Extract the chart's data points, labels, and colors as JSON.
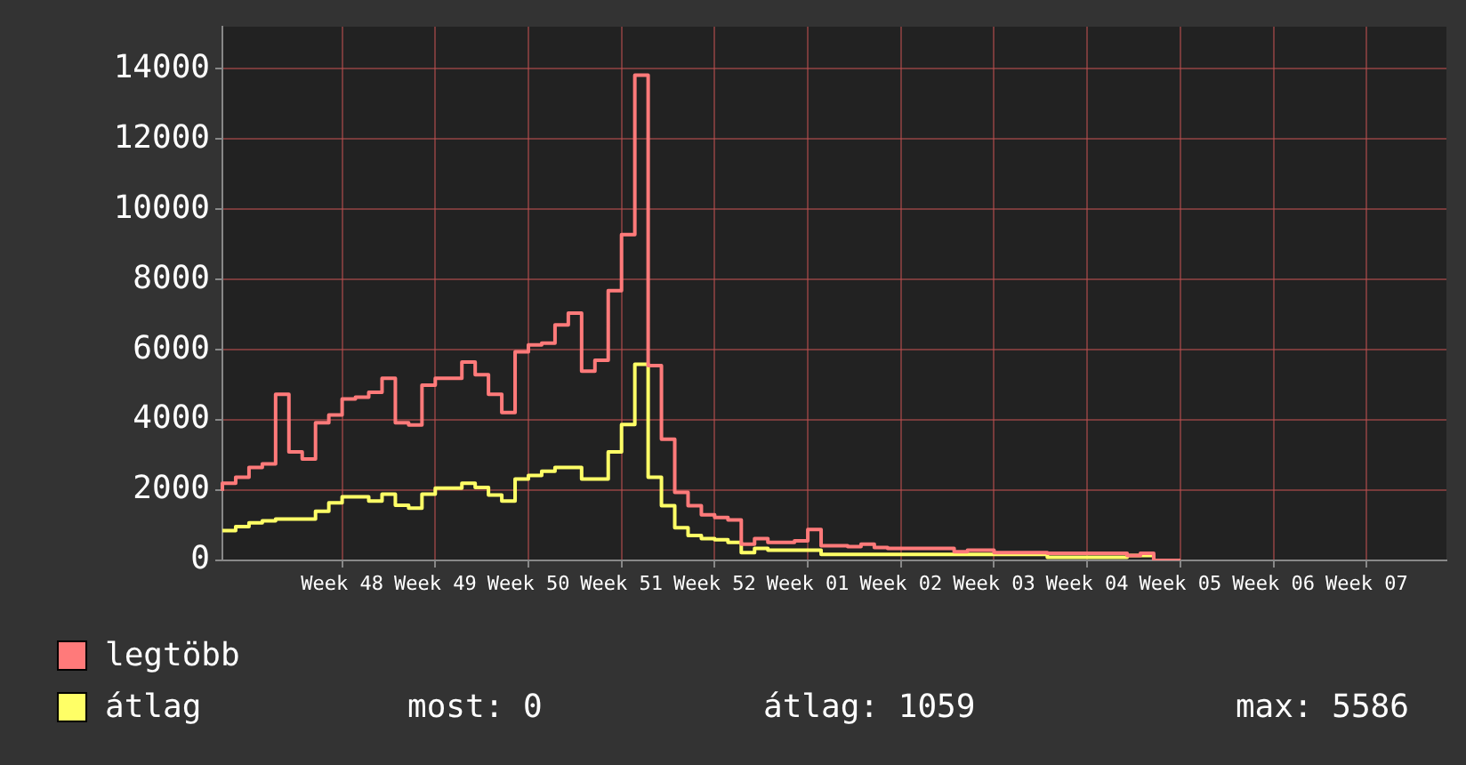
{
  "chart_data": {
    "type": "step",
    "categories": [
      null,
      null,
      null,
      null,
      null,
      null,
      null,
      null,
      null,
      "Week 48",
      null,
      null,
      null,
      null,
      null,
      null,
      "Week 49",
      null,
      null,
      null,
      null,
      null,
      null,
      "Week 50",
      null,
      null,
      null,
      null,
      null,
      null,
      "Week 51",
      null,
      null,
      null,
      null,
      null,
      null,
      "Week 52",
      null,
      null,
      null,
      null,
      null,
      null,
      "Week 01",
      null,
      null,
      null,
      null,
      null,
      null,
      "Week 02",
      null,
      null,
      null,
      null,
      null,
      null,
      "Week 03",
      null,
      null,
      null,
      null,
      null,
      null,
      "Week 04",
      null,
      null,
      null,
      null,
      null,
      null,
      "Week 05",
      null,
      null,
      null,
      null,
      null,
      null,
      "Week 06",
      null,
      null,
      null,
      null,
      null,
      null,
      "Week 07",
      null,
      null,
      null,
      null,
      null,
      null
    ],
    "series": [
      {
        "name": "legtöbb",
        "color": "#ff7a7a",
        "values": [
          1980,
          2200,
          2370,
          2650,
          2750,
          4730,
          3090,
          2890,
          3920,
          4140,
          4600,
          4650,
          4790,
          5190,
          3920,
          3860,
          4990,
          5190,
          5190,
          5650,
          5290,
          4730,
          4210,
          5940,
          6140,
          6190,
          6710,
          7040,
          5390,
          5700,
          7680,
          9280,
          13820,
          5550,
          3450,
          1940,
          1560,
          1300,
          1220,
          1150,
          460,
          620,
          510,
          510,
          560,
          880,
          420,
          420,
          390,
          460,
          370,
          340,
          340,
          340,
          340,
          340,
          250,
          290,
          290,
          220,
          220,
          220,
          220,
          200,
          200,
          200,
          200,
          200,
          200,
          140,
          200,
          0,
          0,
          null,
          null,
          null,
          null,
          null,
          null,
          null,
          null,
          null,
          null,
          null,
          null,
          null,
          null,
          null,
          null,
          null,
          null,
          null,
          null
        ]
      },
      {
        "name": "átlag",
        "color": "#ffff66",
        "values": [
          850,
          850,
          960,
          1070,
          1130,
          1180,
          1180,
          1180,
          1400,
          1640,
          1810,
          1810,
          1690,
          1890,
          1570,
          1490,
          1890,
          2060,
          2060,
          2200,
          2080,
          1860,
          1690,
          2320,
          2420,
          2540,
          2650,
          2650,
          2320,
          2320,
          3090,
          3870,
          5586,
          2370,
          1560,
          930,
          710,
          620,
          590,
          510,
          220,
          340,
          290,
          290,
          290,
          290,
          170,
          170,
          170,
          170,
          170,
          170,
          170,
          170,
          170,
          170,
          170,
          170,
          170,
          170,
          170,
          170,
          170,
          90,
          90,
          90,
          90,
          90,
          90,
          140,
          140,
          0,
          0,
          null,
          null,
          null,
          null,
          null,
          null,
          null,
          null,
          null,
          null,
          null,
          null,
          null,
          null,
          null,
          null,
          null,
          null,
          null,
          null
        ]
      }
    ],
    "ylim": [
      0,
      15200
    ],
    "yticks": [
      0,
      2000,
      4000,
      6000,
      8000,
      10000,
      12000,
      14000
    ],
    "grid": true,
    "legend": "bottom left",
    "annotations": [
      "most: 0",
      "átlag: 1059",
      "max: 5586"
    ]
  }
}
